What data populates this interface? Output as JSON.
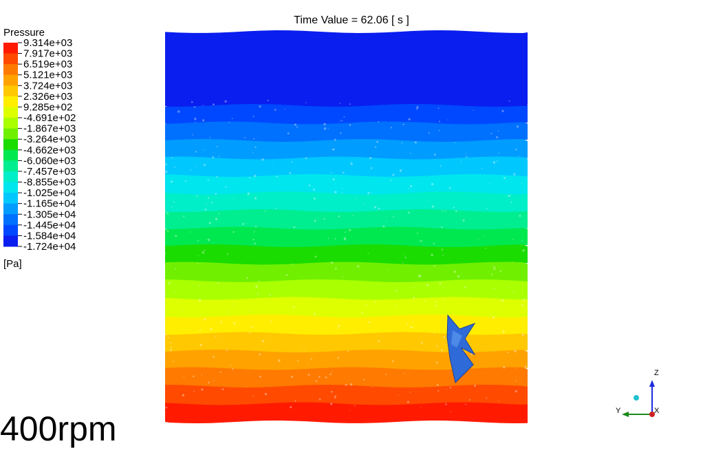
{
  "title": "Time Value = 62.06 [ s ]",
  "legend": {
    "title": "Pressure",
    "labels": [
      "9.314e+03",
      "7.917e+03",
      "6.519e+03",
      "5.121e+03",
      "3.724e+03",
      "2.326e+03",
      "9.285e+02",
      "-4.691e+02",
      "-1.867e+03",
      "-3.264e+03",
      "-4.662e+03",
      "-6.060e+03",
      "-7.457e+03",
      "-8.855e+03",
      "-1.025e+04",
      "-1.165e+04",
      "-1.305e+04",
      "-1.445e+04",
      "-1.584e+04",
      "-1.724e+04"
    ],
    "unit": "[Pa]"
  },
  "caption": "400rpm",
  "triad": {
    "z": "Z",
    "y": "Y",
    "x": "X"
  }
}
